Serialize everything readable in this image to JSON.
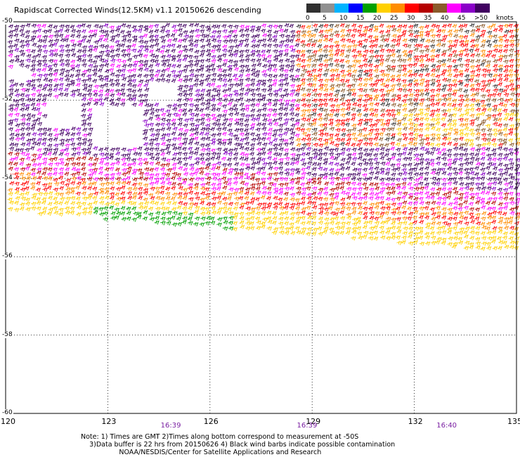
{
  "title": "Rapidscat Corrected Winds(12.5KM) v1.1 20150626 descending",
  "legend": {
    "unit": "knots",
    "labels": [
      "0",
      "5",
      "10",
      "15",
      "20",
      "25",
      "30",
      "35",
      "40",
      "45",
      ">50"
    ],
    "colors": [
      "#303030",
      "#909090",
      "#00b4ff",
      "#0000ff",
      "#00a000",
      "#ffd000",
      "#ff8c00",
      "#ff0000",
      "#b50000",
      "#8b5a2b",
      "#ff00ff",
      "#8a00c8",
      "#400060"
    ]
  },
  "map": {
    "lon_range": [
      120,
      135
    ],
    "lat_range": [
      -50,
      -60
    ],
    "lon_ticks": [
      "120",
      "123",
      "126",
      "129",
      "132",
      "135"
    ],
    "lat_ticks": [
      "-50",
      "-52",
      "-54",
      "-56",
      "-58",
      "-60"
    ],
    "times": [
      "16:39",
      "16:39",
      "16:40"
    ],
    "grid": true
  },
  "notes": {
    "line1": "Note: 1) Times are GMT 2)Times along bottom correspond to measurement at -50S",
    "line2": "3)Data buffer is 22 hrs from 20150626 4) Black wind barbs indicate possible contamination",
    "line3": "NOAA/NESDIS/Center for Satellite Applications and Research"
  }
}
